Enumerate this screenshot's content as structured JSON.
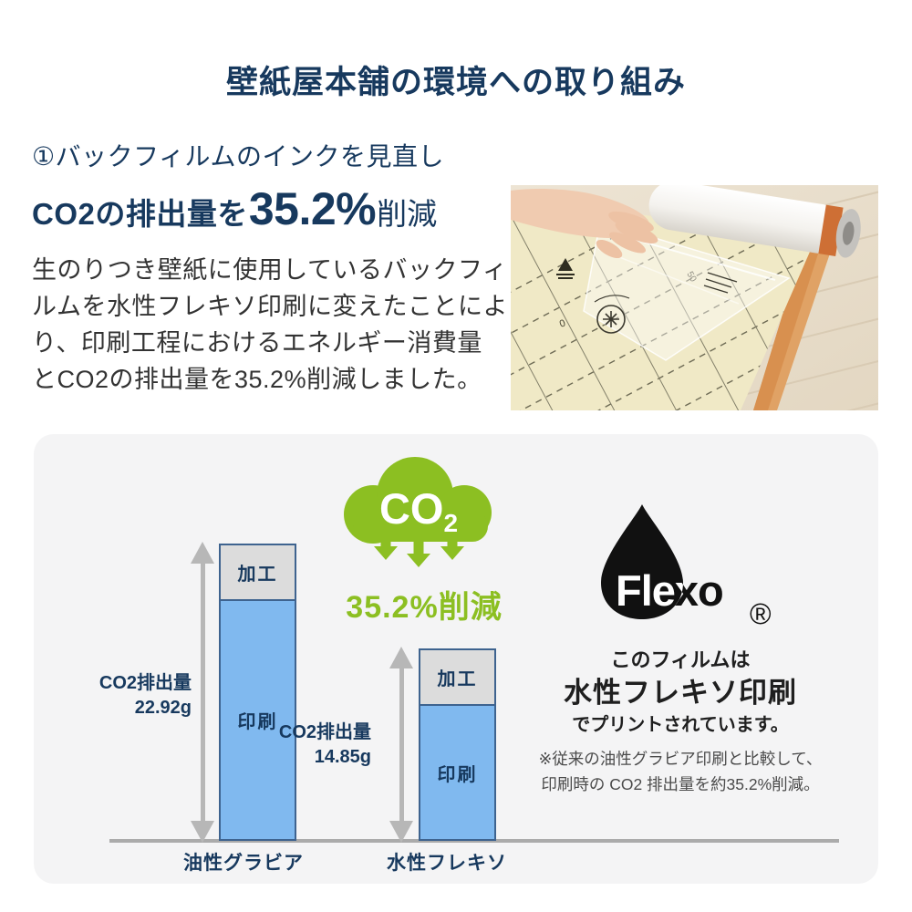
{
  "header": {
    "title": "壁紙屋本舗の環境への取り組み"
  },
  "intro": {
    "section_heading": "①バックフィルムのインクを見直し",
    "headline_prefix": "CO2の排出量を",
    "headline_value": "35.2%",
    "headline_suffix": "削減",
    "body_lines": [
      "生のりつき壁紙に使用しているバックフィ",
      "ルムを水性フレキソ印刷に変えたことによ",
      "り、印刷工程におけるエネルギー消費量",
      "とCO2の排出量を35.2%削減しました。"
    ]
  },
  "chart_data": {
    "type": "bar",
    "stacked": true,
    "categories": [
      "油性グラビア",
      "水性フレキソ"
    ],
    "segment_labels": {
      "processing": "加工",
      "printing": "印刷"
    },
    "series": [
      {
        "name": "加工",
        "values_g": [
          4.3,
          4.3
        ]
      },
      {
        "name": "印刷",
        "values_g": [
          18.62,
          10.55
        ]
      }
    ],
    "totals_g": [
      22.92,
      14.85
    ],
    "total_labels": [
      {
        "line1": "CO2排出量",
        "line2": "22.92g"
      },
      {
        "line1": "CO2排出量",
        "line2": "14.85g"
      }
    ],
    "unit": "g",
    "legend_position": "none",
    "axis": "baseline-only",
    "bar_colors": {
      "printing": "#80B9EF",
      "processing": "#DCDCDC",
      "border": "#3E638F"
    }
  },
  "reduction_badge": {
    "cloud_icon": "co2-cloud-down-arrows-icon",
    "cloud_text": "CO",
    "cloud_text_sub": "2",
    "label": "35.2%削減",
    "color": "#8CBF22"
  },
  "flexo": {
    "logo_icon": "flexo-droplet-logo",
    "brand": "Flexo",
    "registered": "®",
    "caption_line1": "このフィルムは",
    "caption_line2": "水性フレキソ印刷",
    "caption_line3": "でプリントされています。",
    "note_line1": "※従来の油性グラビア印刷と比較して、",
    "note_line2": "印刷時の CO2 排出量を約35.2%削減。"
  },
  "colors": {
    "navy": "#17395E",
    "green": "#8CBF22",
    "bar_blue": "#80B9EF",
    "bar_gray": "#DCDCDC",
    "bar_border": "#3E638F",
    "panel_bg": "#F4F4F5",
    "arrow_gray": "#B7B7B7",
    "body_text": "#333333"
  }
}
